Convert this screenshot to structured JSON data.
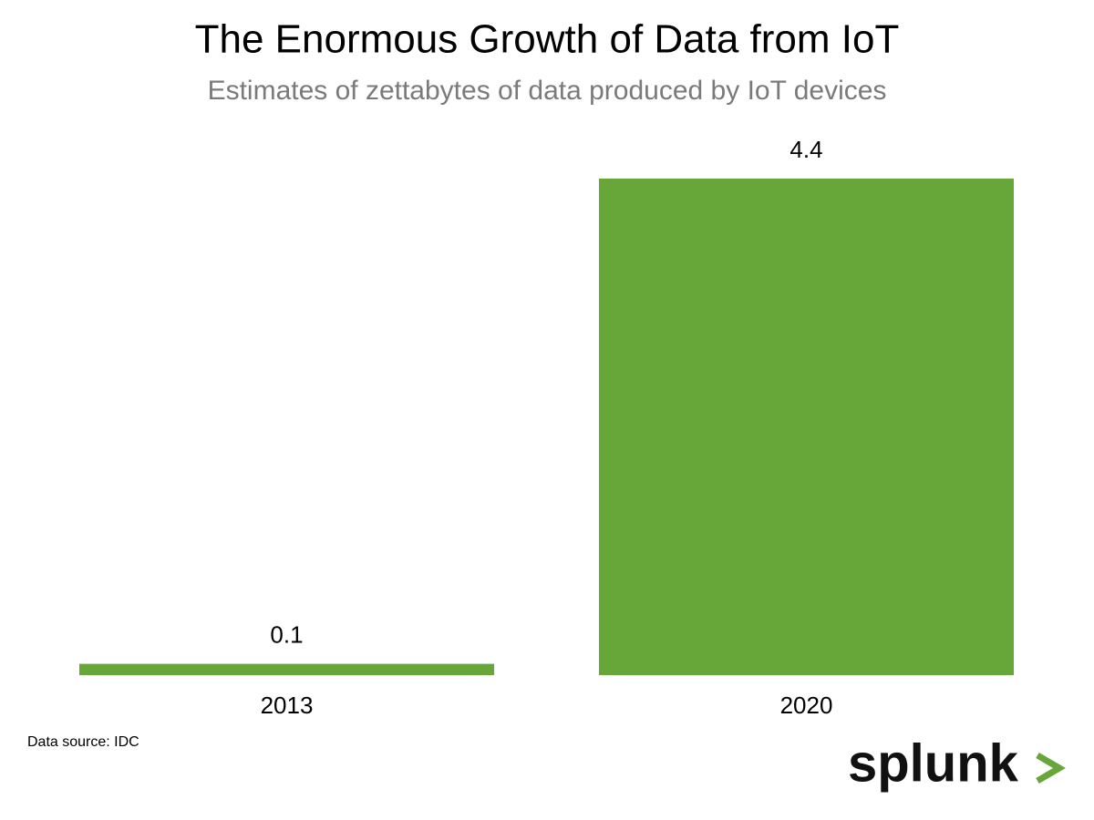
{
  "chart_data": {
    "type": "bar",
    "title": "The Enormous Growth of Data from IoT",
    "subtitle": "Estimates of zettabytes of data produced by IoT devices",
    "categories": [
      "2013",
      "2020"
    ],
    "values": [
      0.1,
      4.4
    ],
    "color": "#67a638",
    "source": "Data source: IDC",
    "logo": "splunk"
  }
}
